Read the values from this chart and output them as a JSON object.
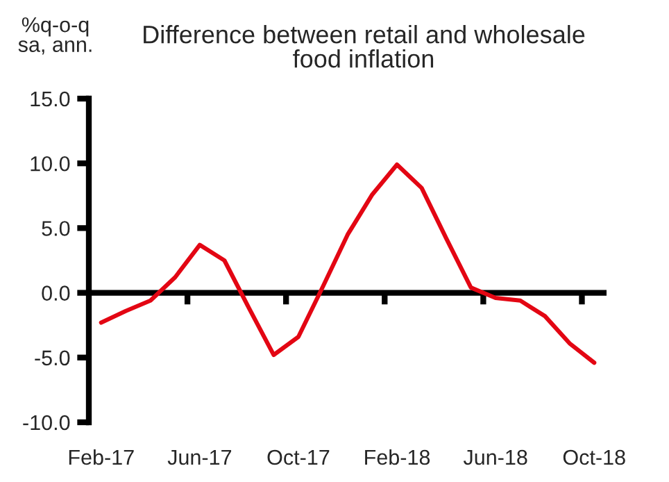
{
  "chart_data": {
    "type": "line",
    "title": "Difference between retail and wholesale\nfood inflation",
    "ylabel": "%q-o-q\nsa, ann.",
    "categories": [
      "Feb-17",
      null,
      null,
      null,
      "Jun-17",
      null,
      null,
      null,
      "Oct-17",
      null,
      null,
      null,
      "Feb-18",
      null,
      null,
      null,
      "Jun-18",
      null,
      null,
      null,
      "Oct-18"
    ],
    "series": [
      {
        "color": "#e30613",
        "values": [
          -2.3,
          -1.4,
          -0.6,
          1.2,
          3.7,
          2.5,
          -1.2,
          -4.8,
          -3.4,
          0.5,
          4.5,
          7.6,
          9.9,
          8.1,
          4.2,
          0.4,
          -0.4,
          -0.6,
          -1.8,
          -3.9,
          -5.4
        ]
      }
    ],
    "ylim": [
      -10,
      15
    ],
    "yticks": [
      {
        "value": -10,
        "label": "-10.0"
      },
      {
        "value": -5,
        "label": "-5.0"
      },
      {
        "value": 0,
        "label": "0.0"
      },
      {
        "value": 5,
        "label": "5.0"
      },
      {
        "value": 10,
        "label": "10.0"
      },
      {
        "value": 15,
        "label": "15.0"
      }
    ],
    "ref_lines": [
      {
        "axis": "y",
        "value": 0,
        "color": "#000000",
        "line_style": "solid"
      }
    ],
    "grid": false,
    "legend": false,
    "marker": "none",
    "line_style": "solid"
  }
}
